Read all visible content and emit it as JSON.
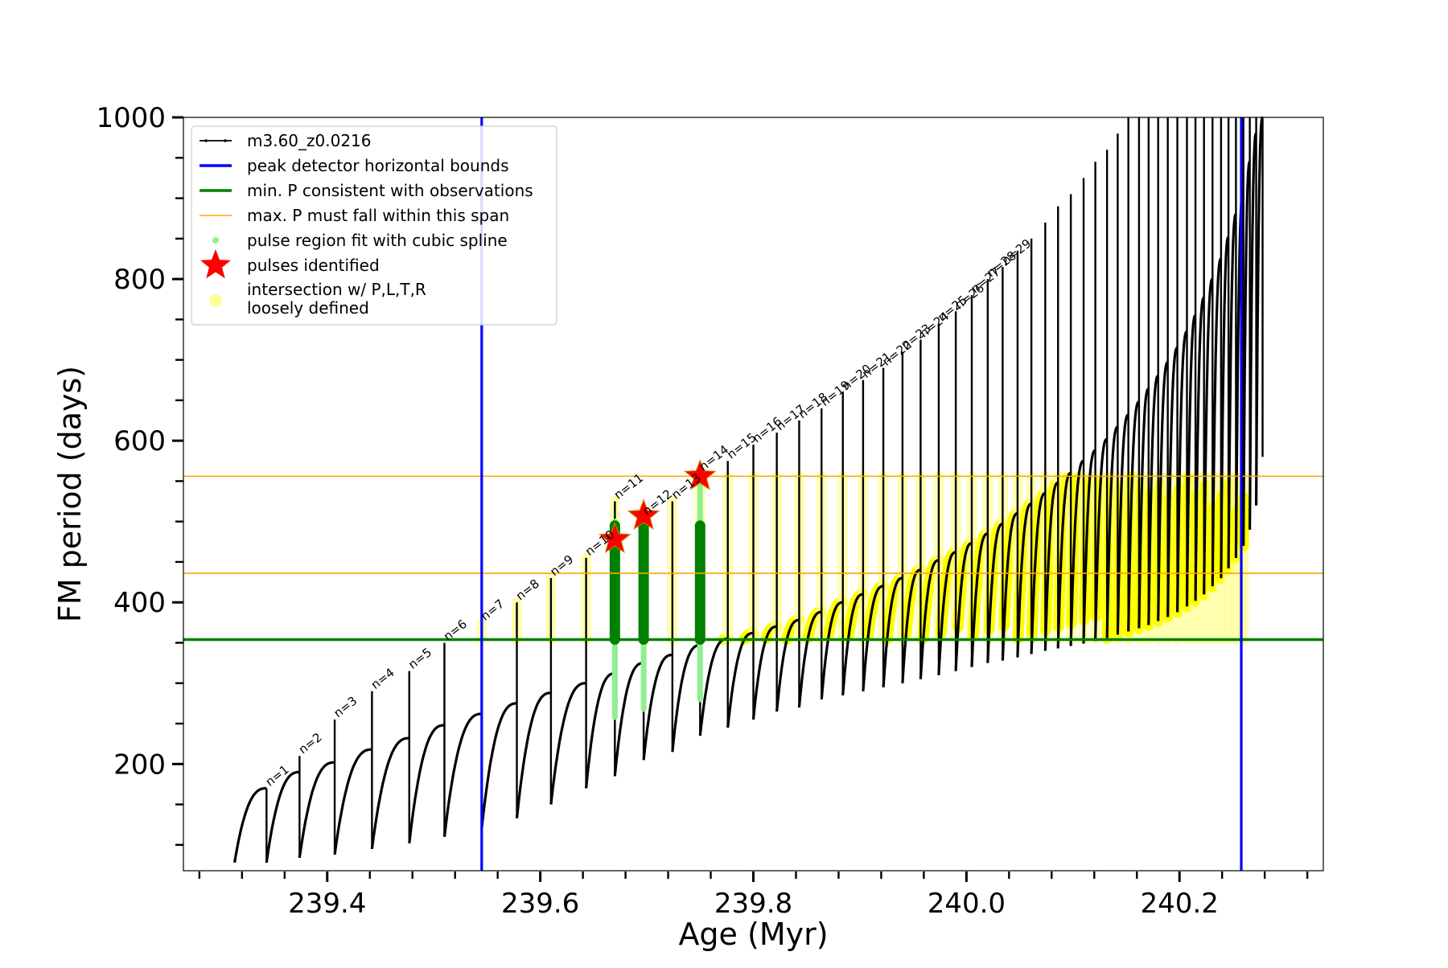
{
  "chart_data": {
    "type": "line",
    "title": "",
    "xlabel": "Age (Myr)",
    "ylabel": "FM period (days)",
    "xlim": [
      239.265,
      240.335
    ],
    "ylim": [
      68,
      1000
    ],
    "x_ticks": [
      239.4,
      239.6,
      239.8,
      240.0,
      240.2
    ],
    "x_tick_labels": [
      "239.4",
      "239.6",
      "239.8",
      "240.0",
      "240.2"
    ],
    "x_minor_step": 0.04,
    "y_ticks": [
      200,
      400,
      600,
      800,
      1000
    ],
    "y_tick_labels": [
      "200",
      "400",
      "600",
      "800",
      "1000"
    ],
    "y_minor_step": 50,
    "grid": false,
    "legend_position": "top-left",
    "legend": [
      {
        "label": "m3.60_z0.0216",
        "kind": "line-marker",
        "color": "#000000"
      },
      {
        "label": "peak detector horizontal bounds",
        "kind": "line",
        "color": "#0000ff"
      },
      {
        "label": "min. P consistent with observations",
        "kind": "line",
        "color": "#008000"
      },
      {
        "label": "max. P must fall within this span",
        "kind": "thin-line",
        "color": "#ffa500"
      },
      {
        "label": "pulse region fit with cubic spline",
        "kind": "dot",
        "color": "#90ee90"
      },
      {
        "label": "pulses identified",
        "kind": "star",
        "color": "#ff0000"
      },
      {
        "label": "intersection w/ P,L,T,R",
        "label2": "loosely defined",
        "kind": "circle",
        "color": "#ffff99"
      }
    ],
    "vertical_lines": [
      {
        "x": 239.545,
        "color": "#0000ff"
      },
      {
        "x": 240.258,
        "color": "#0000ff"
      }
    ],
    "horizontal_lines": [
      {
        "y": 354,
        "color": "#008000"
      },
      {
        "y": 436,
        "color": "#ffa500"
      },
      {
        "y": 556,
        "color": "#ffa500"
      }
    ],
    "pulses": [
      {
        "n": 1,
        "age": 239.343,
        "base": 78,
        "peak": 170,
        "spike": 170
      },
      {
        "n": 2,
        "age": 239.374,
        "base": 84,
        "peak": 190,
        "spike": 210
      },
      {
        "n": 3,
        "age": 239.407,
        "base": 88,
        "peak": 202,
        "spike": 255
      },
      {
        "n": 4,
        "age": 239.442,
        "base": 95,
        "peak": 218,
        "spike": 290
      },
      {
        "n": 5,
        "age": 239.477,
        "base": 102,
        "peak": 232,
        "spike": 315
      },
      {
        "n": 6,
        "age": 239.51,
        "base": 110,
        "peak": 248,
        "spike": 350
      },
      {
        "n": 7,
        "age": 239.545,
        "base": 120,
        "peak": 262,
        "spike": 375
      },
      {
        "n": 8,
        "age": 239.578,
        "base": 133,
        "peak": 275,
        "spike": 400
      },
      {
        "n": 9,
        "age": 239.61,
        "base": 150,
        "peak": 288,
        "spike": 430
      },
      {
        "n": 10,
        "age": 239.643,
        "base": 170,
        "peak": 300,
        "spike": 455
      },
      {
        "n": 11,
        "age": 239.67,
        "base": 185,
        "peak": 312,
        "spike": 525
      },
      {
        "n": 12,
        "age": 239.697,
        "base": 205,
        "peak": 325,
        "spike": 505
      },
      {
        "n": 13,
        "age": 239.724,
        "base": 215,
        "peak": 335,
        "spike": 525
      },
      {
        "n": 14,
        "age": 239.75,
        "base": 235,
        "peak": 347,
        "spike": 560
      },
      {
        "n": 15,
        "age": 239.776,
        "base": 245,
        "peak": 355,
        "spike": 575
      },
      {
        "n": 16,
        "age": 239.8,
        "base": 255,
        "peak": 362,
        "spike": 595
      },
      {
        "n": 17,
        "age": 239.822,
        "base": 265,
        "peak": 370,
        "spike": 610
      },
      {
        "n": 18,
        "age": 239.843,
        "base": 270,
        "peak": 378,
        "spike": 625
      },
      {
        "n": 19,
        "age": 239.864,
        "base": 280,
        "peak": 388,
        "spike": 640
      },
      {
        "n": 20,
        "age": 239.884,
        "base": 285,
        "peak": 400,
        "spike": 660
      },
      {
        "n": 21,
        "age": 239.903,
        "base": 290,
        "peak": 410,
        "spike": 675
      },
      {
        "n": 22,
        "age": 239.922,
        "base": 295,
        "peak": 420,
        "spike": 690
      },
      {
        "n": 23,
        "age": 239.94,
        "base": 300,
        "peak": 430,
        "spike": 710
      },
      {
        "n": 24,
        "age": 239.957,
        "base": 305,
        "peak": 440,
        "spike": 725
      },
      {
        "n": 25,
        "age": 239.974,
        "base": 310,
        "peak": 452,
        "spike": 745
      },
      {
        "n": 26,
        "age": 239.99,
        "base": 315,
        "peak": 462,
        "spike": 760
      },
      {
        "n": 27,
        "age": 240.005,
        "base": 320,
        "peak": 473,
        "spike": 780
      },
      {
        "n": 28,
        "age": 240.02,
        "base": 325,
        "peak": 485,
        "spike": 800
      },
      {
        "n": 29,
        "age": 240.034,
        "base": 328,
        "peak": 497,
        "spike": 815
      },
      {
        "n": 30,
        "age": 240.048,
        "base": 332,
        "peak": 510,
        "spike": 835
      },
      {
        "n": 31,
        "age": 240.061,
        "base": 336,
        "peak": 522,
        "spike": 850
      },
      {
        "n": 32,
        "age": 240.074,
        "base": 340,
        "peak": 535,
        "spike": 870
      },
      {
        "n": 33,
        "age": 240.086,
        "base": 343,
        "peak": 548,
        "spike": 890
      },
      {
        "n": 34,
        "age": 240.098,
        "base": 346,
        "peak": 560,
        "spike": 905
      },
      {
        "n": 35,
        "age": 240.11,
        "base": 349,
        "peak": 575,
        "spike": 925
      },
      {
        "n": 36,
        "age": 240.121,
        "base": 352,
        "peak": 588,
        "spike": 945
      },
      {
        "n": 37,
        "age": 240.132,
        "base": 356,
        "peak": 602,
        "spike": 960
      },
      {
        "n": 38,
        "age": 240.142,
        "base": 360,
        "peak": 617,
        "spike": 980
      },
      {
        "n": 39,
        "age": 240.152,
        "base": 364,
        "peak": 632,
        "spike": 1000
      },
      {
        "n": 40,
        "age": 240.162,
        "base": 368,
        "peak": 648,
        "spike": 1000
      },
      {
        "n": 41,
        "age": 240.171,
        "base": 372,
        "peak": 664,
        "spike": 1000
      },
      {
        "n": 42,
        "age": 240.18,
        "base": 377,
        "peak": 680,
        "spike": 1000
      },
      {
        "n": 43,
        "age": 240.189,
        "base": 382,
        "peak": 697,
        "spike": 1000
      },
      {
        "n": 44,
        "age": 240.198,
        "base": 388,
        "peak": 715,
        "spike": 1000
      },
      {
        "n": 45,
        "age": 240.207,
        "base": 395,
        "peak": 735,
        "spike": 1000
      },
      {
        "n": 46,
        "age": 240.215,
        "base": 402,
        "peak": 755,
        "spike": 1000
      },
      {
        "n": 47,
        "age": 240.223,
        "base": 410,
        "peak": 777,
        "spike": 1000
      },
      {
        "n": 48,
        "age": 240.231,
        "base": 420,
        "peak": 800,
        "spike": 1000
      },
      {
        "n": 49,
        "age": 240.239,
        "base": 430,
        "peak": 825,
        "spike": 1000
      },
      {
        "n": 50,
        "age": 240.246,
        "base": 442,
        "peak": 852,
        "spike": 1000
      },
      {
        "n": 51,
        "age": 240.253,
        "base": 455,
        "peak": 880,
        "spike": 1000
      },
      {
        "n": 52,
        "age": 240.26,
        "base": 470,
        "peak": 912,
        "spike": 1000
      },
      {
        "n": 53,
        "age": 240.266,
        "base": 490,
        "peak": 945,
        "spike": 1000
      },
      {
        "n": 54,
        "age": 240.272,
        "base": 520,
        "peak": 980,
        "spike": 1000
      },
      {
        "n": 55,
        "age": 240.278,
        "base": 580,
        "peak": 1000,
        "spike": 1000
      }
    ],
    "start_point": {
      "age": 239.313,
      "period": 78
    },
    "pulse_labels": [
      "n=1",
      "n=2",
      "n=3",
      "n=4",
      "n=5",
      "n=6",
      "n=7",
      "n=8",
      "n=9",
      "n=10",
      "n=11",
      "n=12",
      "n=13",
      "n=14",
      "n=15",
      "n=16",
      "n=17",
      "n=18",
      "n=19",
      "n=20",
      "n=21",
      "n=22",
      "n=23",
      "n=24",
      "n=25",
      "n=26",
      "n=27",
      "n=28",
      "n=29"
    ],
    "identified_pulses": [
      {
        "age": 239.67,
        "period": 478
      },
      {
        "age": 239.697,
        "period": 507
      },
      {
        "age": 239.75,
        "period": 556
      }
    ],
    "spline_fit_pulses": [
      {
        "age": 239.67,
        "low": 258,
        "high": 500,
        "dense_low": 354,
        "dense_high": 495
      },
      {
        "age": 239.697,
        "low": 268,
        "high": 500,
        "dense_low": 354,
        "dense_high": 495
      },
      {
        "age": 239.75,
        "low": 280,
        "high": 556,
        "dense_low": 354,
        "dense_high": 495
      }
    ],
    "intersection_bounds": {
      "low": 354,
      "high": 556
    }
  }
}
